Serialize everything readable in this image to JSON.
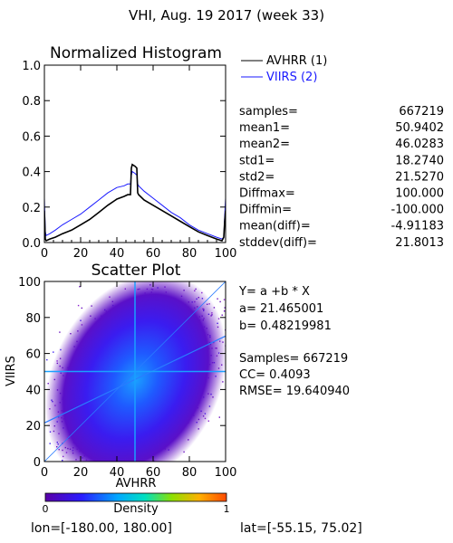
{
  "title": "VHI,  Aug. 19 2017 (week 33)",
  "colors": {
    "avhrr": "#000000",
    "viirs": "#1a1aff",
    "axis": "#000000",
    "fit_line": "#2a7cff"
  },
  "chart_data": [
    {
      "type": "line",
      "title": "Normalized Histogram",
      "xlim": [
        0,
        100
      ],
      "ylim": [
        0,
        1.0
      ],
      "x_ticks": [
        "0",
        "20",
        "40",
        "60",
        "80",
        "100"
      ],
      "y_ticks": [
        "0.0",
        "0.2",
        "0.4",
        "0.6",
        "0.8",
        "1.0"
      ],
      "legend_placement": "right",
      "series": [
        {
          "name": "AVHRR (1)",
          "x": [
            0,
            0.5,
            1,
            3,
            6,
            10,
            15,
            20,
            25,
            30,
            35,
            40,
            44,
            46,
            47.5,
            48,
            48.5,
            50,
            51,
            51.5,
            52,
            55,
            60,
            65,
            70,
            75,
            80,
            85,
            90,
            95,
            98,
            99,
            99.5,
            100
          ],
          "y": [
            0.18,
            0.02,
            0.01,
            0.02,
            0.03,
            0.05,
            0.07,
            0.1,
            0.13,
            0.17,
            0.21,
            0.245,
            0.26,
            0.27,
            0.27,
            0.42,
            0.44,
            0.43,
            0.42,
            0.28,
            0.27,
            0.24,
            0.21,
            0.18,
            0.15,
            0.12,
            0.09,
            0.06,
            0.04,
            0.02,
            0.01,
            0.03,
            0.12,
            0.18
          ]
        },
        {
          "name": "VIIRS (2)",
          "x": [
            0,
            0.5,
            1,
            3,
            6,
            10,
            15,
            20,
            25,
            30,
            35,
            40,
            44,
            46,
            47.5,
            48,
            48.5,
            50,
            51,
            51.5,
            52,
            55,
            60,
            65,
            70,
            75,
            80,
            85,
            90,
            95,
            98,
            99,
            99.5,
            100
          ],
          "y": [
            0.25,
            0.06,
            0.04,
            0.05,
            0.07,
            0.1,
            0.13,
            0.16,
            0.2,
            0.24,
            0.28,
            0.31,
            0.32,
            0.33,
            0.33,
            0.38,
            0.4,
            0.39,
            0.38,
            0.33,
            0.32,
            0.29,
            0.25,
            0.21,
            0.17,
            0.14,
            0.1,
            0.07,
            0.05,
            0.03,
            0.02,
            0.03,
            0.15,
            0.25
          ]
        }
      ]
    },
    {
      "type": "scatter",
      "title": "Scatter Plot",
      "xlabel": "AVHRR",
      "ylabel": "VIIRS",
      "xlim": [
        0,
        100
      ],
      "ylim": [
        0,
        100
      ],
      "x_ticks": [
        "0",
        "20",
        "40",
        "60",
        "80",
        "100"
      ],
      "y_ticks": [
        "0",
        "20",
        "40",
        "60",
        "80",
        "100"
      ],
      "fit": {
        "a": 21.465001,
        "b": 0.48219981
      },
      "center": [
        50,
        50
      ]
    },
    {
      "type": "colorbar",
      "label": "Density",
      "min_label": "0",
      "max_label": "1"
    }
  ],
  "stats": [
    {
      "label": "samples=",
      "value": "667219"
    },
    {
      "label": "mean1=",
      "value": "50.9402"
    },
    {
      "label": "mean2=",
      "value": "46.0283"
    },
    {
      "label": "std1=",
      "value": "18.2740"
    },
    {
      "label": "std2=",
      "value": "21.5270"
    },
    {
      "label": "Diffmax=",
      "value": "100.000"
    },
    {
      "label": "Diffmin=",
      "value": "-100.000"
    },
    {
      "label": "mean(diff)=",
      "value": "-4.91183"
    },
    {
      "label": "stddev(diff)=",
      "value": "21.8013"
    }
  ],
  "regression": {
    "equation": "Y= a +b * X",
    "a_text": "a= 21.465001",
    "b_text": "b= 0.48219981",
    "samples_text": "Samples= 667219",
    "cc_text": "CC=  0.4093",
    "rmse_text": "RMSE= 19.640940"
  },
  "footer": {
    "lon_text": "lon=[-180.00, 180.00]",
    "lat_text": "lat=[-55.15, 75.02]"
  }
}
